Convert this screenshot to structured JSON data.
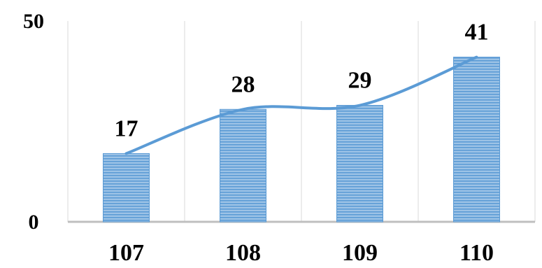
{
  "chart_data": {
    "type": "bar",
    "categories": [
      "107",
      "108",
      "109",
      "110"
    ],
    "values": [
      17,
      28,
      29,
      41
    ],
    "trendline": true,
    "ylim": [
      0,
      50
    ],
    "yticks": [
      "0",
      "50"
    ],
    "grid": "vertical",
    "title": "",
    "xlabel": "",
    "ylabel": ""
  },
  "colors": {
    "bar_fill": "#9dc3e6",
    "bar_stripe": "#5b9bd5",
    "trend_line": "#5b9bd5",
    "grid": "#d9d9d9",
    "axis": "#bfbfbf"
  }
}
